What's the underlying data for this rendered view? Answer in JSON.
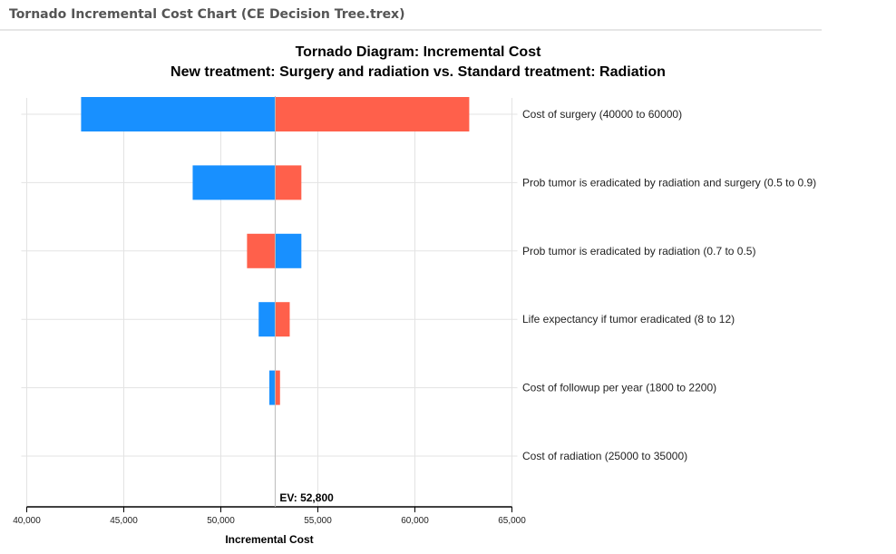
{
  "window_title": "Tornado Incremental Cost Chart (CE Decision Tree.trex)",
  "chart_data": {
    "type": "bar",
    "orientation": "horizontal",
    "title": "Tornado Diagram: Incremental Cost",
    "subtitle": "New treatment: Surgery and radiation vs. Standard treatment: Radiation",
    "xlabel": "Incremental Cost",
    "xlim": [
      40000,
      65000
    ],
    "xticks": [
      40000,
      45000,
      50000,
      55000,
      60000,
      65000
    ],
    "xtick_labels": [
      "40,000",
      "45,000",
      "50,000",
      "55,000",
      "60,000",
      "65,000"
    ],
    "ev": 52800,
    "ev_label": "EV: 52,800",
    "grid": true,
    "colors": {
      "low": "#1890ff",
      "high": "#ff604b"
    },
    "categories": [
      "Cost of surgery (40000 to 60000)",
      "Prob tumor is eradicated by radiation and surgery (0.5 to 0.9)",
      "Prob tumor is eradicated by radiation (0.7 to 0.5)",
      "Life expectancy if tumor eradicated (8 to 12)",
      "Cost of followup per year (1800 to 2200)",
      "Cost of radiation (25000 to 35000)"
    ],
    "low_values": [
      42800,
      48550,
      54150,
      51950,
      52500,
      52800
    ],
    "high_values": [
      62800,
      54150,
      51350,
      53550,
      53050,
      52800
    ]
  }
}
